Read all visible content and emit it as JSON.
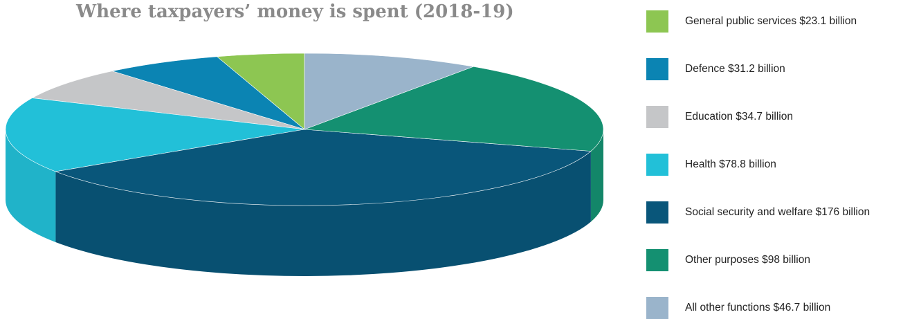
{
  "chart_data": {
    "type": "pie",
    "title": "Where taxpayers’ money is spent (2018-19)",
    "unit": "$ billion",
    "slices": [
      {
        "label": "General public services $23.1 billion",
        "value": 23.1,
        "color": "#8dc652"
      },
      {
        "label": "Defence $31.2 billion",
        "value": 31.2,
        "color": "#0b84b3"
      },
      {
        "label": "Education $34.7 billion",
        "value": 34.7,
        "color": "#c5c6c8"
      },
      {
        "label": "Health $78.8 billion",
        "value": 78.8,
        "color": "#22c0d8"
      },
      {
        "label": "Social security and welfare $176 billion",
        "value": 176,
        "color": "#09567a"
      },
      {
        "label": "Other purposes $98 billion",
        "value": 98,
        "color": "#149071"
      },
      {
        "label": "All other functions $46.7 billion",
        "value": 46.7,
        "color": "#9ab4cb"
      }
    ],
    "legend_position": "right",
    "style": "3d-pie"
  }
}
